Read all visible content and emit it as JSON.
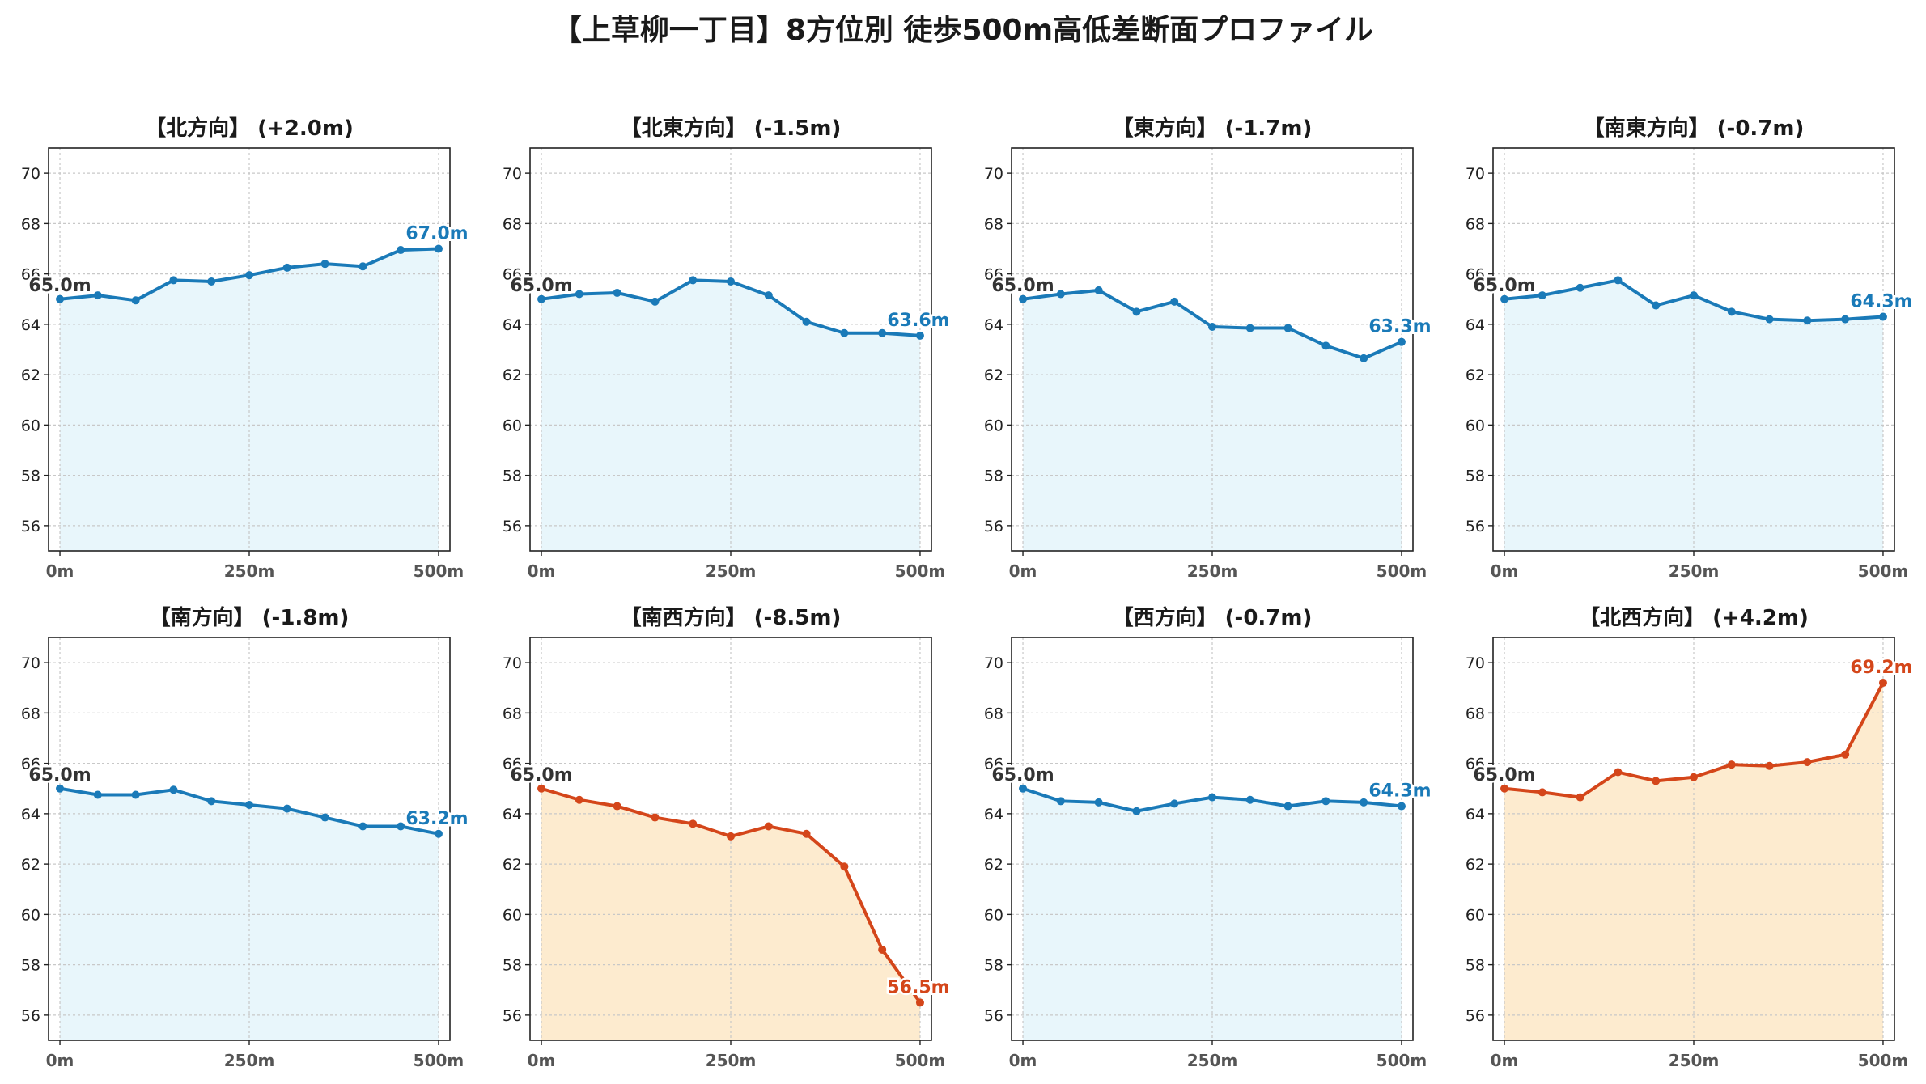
{
  "title": "【上草柳一丁目】8方位別 徒歩500m高低差断面プロファイル",
  "colors": {
    "flat_line": "#1a7ab8",
    "flat_fill": "#e8f6fb",
    "steep_line": "#d4461a",
    "steep_fill": "#fdebcf",
    "start_label": "#333333"
  },
  "chart_data": [
    {
      "type": "area",
      "title": "【北方向】 (+2.0m)",
      "style": "flat",
      "x": [
        0,
        50,
        100,
        150,
        200,
        250,
        300,
        350,
        400,
        450,
        500
      ],
      "y": [
        65.0,
        65.15,
        64.95,
        65.75,
        65.7,
        65.95,
        66.25,
        66.4,
        66.3,
        66.95,
        67.0
      ],
      "start_label": "65.0m",
      "end_label": "67.0m",
      "xticks": [
        "0m",
        "250m",
        "500m"
      ],
      "xtick_values": [
        0,
        250,
        500
      ],
      "yticks": [
        "56",
        "58",
        "60",
        "62",
        "64",
        "66",
        "68",
        "70"
      ],
      "ytick_values": [
        56,
        58,
        60,
        62,
        64,
        66,
        68,
        70
      ],
      "ylim": [
        55,
        71
      ],
      "xlim": [
        -15,
        515
      ],
      "grid": true
    },
    {
      "type": "area",
      "title": "【北東方向】 (-1.5m)",
      "style": "flat",
      "x": [
        0,
        50,
        100,
        150,
        200,
        250,
        300,
        350,
        400,
        450,
        500
      ],
      "y": [
        65.0,
        65.2,
        65.25,
        64.9,
        65.75,
        65.7,
        65.15,
        64.1,
        63.65,
        63.65,
        63.55
      ],
      "start_label": "65.0m",
      "end_label": "63.6m",
      "xticks": [
        "0m",
        "250m",
        "500m"
      ],
      "xtick_values": [
        0,
        250,
        500
      ],
      "yticks": [
        "56",
        "58",
        "60",
        "62",
        "64",
        "66",
        "68",
        "70"
      ],
      "ytick_values": [
        56,
        58,
        60,
        62,
        64,
        66,
        68,
        70
      ],
      "ylim": [
        55,
        71
      ],
      "xlim": [
        -15,
        515
      ],
      "grid": true
    },
    {
      "type": "area",
      "title": "【東方向】 (-1.7m)",
      "style": "flat",
      "x": [
        0,
        50,
        100,
        150,
        200,
        250,
        300,
        350,
        400,
        450,
        500
      ],
      "y": [
        65.0,
        65.2,
        65.35,
        64.5,
        64.9,
        63.9,
        63.85,
        63.85,
        63.15,
        62.65,
        63.3
      ],
      "start_label": "65.0m",
      "end_label": "63.3m",
      "xticks": [
        "0m",
        "250m",
        "500m"
      ],
      "xtick_values": [
        0,
        250,
        500
      ],
      "yticks": [
        "56",
        "58",
        "60",
        "62",
        "64",
        "66",
        "68",
        "70"
      ],
      "ytick_values": [
        56,
        58,
        60,
        62,
        64,
        66,
        68,
        70
      ],
      "ylim": [
        55,
        71
      ],
      "xlim": [
        -15,
        515
      ],
      "grid": true
    },
    {
      "type": "area",
      "title": "【南東方向】 (-0.7m)",
      "style": "flat",
      "x": [
        0,
        50,
        100,
        150,
        200,
        250,
        300,
        350,
        400,
        450,
        500
      ],
      "y": [
        65.0,
        65.15,
        65.45,
        65.75,
        64.75,
        65.15,
        64.5,
        64.2,
        64.15,
        64.2,
        64.3
      ],
      "start_label": "65.0m",
      "end_label": "64.3m",
      "xticks": [
        "0m",
        "250m",
        "500m"
      ],
      "xtick_values": [
        0,
        250,
        500
      ],
      "yticks": [
        "56",
        "58",
        "60",
        "62",
        "64",
        "66",
        "68",
        "70"
      ],
      "ytick_values": [
        56,
        58,
        60,
        62,
        64,
        66,
        68,
        70
      ],
      "ylim": [
        55,
        71
      ],
      "xlim": [
        -15,
        515
      ],
      "grid": true
    },
    {
      "type": "area",
      "title": "【南方向】 (-1.8m)",
      "style": "flat",
      "x": [
        0,
        50,
        100,
        150,
        200,
        250,
        300,
        350,
        400,
        450,
        500
      ],
      "y": [
        65.0,
        64.75,
        64.75,
        64.95,
        64.5,
        64.35,
        64.2,
        63.85,
        63.5,
        63.5,
        63.2
      ],
      "start_label": "65.0m",
      "end_label": "63.2m",
      "xticks": [
        "0m",
        "250m",
        "500m"
      ],
      "xtick_values": [
        0,
        250,
        500
      ],
      "yticks": [
        "56",
        "58",
        "60",
        "62",
        "64",
        "66",
        "68",
        "70"
      ],
      "ytick_values": [
        56,
        58,
        60,
        62,
        64,
        66,
        68,
        70
      ],
      "ylim": [
        55,
        71
      ],
      "xlim": [
        -15,
        515
      ],
      "grid": true
    },
    {
      "type": "area",
      "title": "【南西方向】 (-8.5m)",
      "style": "steep",
      "x": [
        0,
        50,
        100,
        150,
        200,
        250,
        300,
        350,
        400,
        450,
        500
      ],
      "y": [
        65.0,
        64.55,
        64.3,
        63.85,
        63.6,
        63.1,
        63.5,
        63.2,
        61.9,
        58.6,
        56.5
      ],
      "start_label": "65.0m",
      "end_label": "56.5m",
      "xticks": [
        "0m",
        "250m",
        "500m"
      ],
      "xtick_values": [
        0,
        250,
        500
      ],
      "yticks": [
        "56",
        "58",
        "60",
        "62",
        "64",
        "66",
        "68",
        "70"
      ],
      "ytick_values": [
        56,
        58,
        60,
        62,
        64,
        66,
        68,
        70
      ],
      "ylim": [
        55,
        71
      ],
      "xlim": [
        -15,
        515
      ],
      "grid": true
    },
    {
      "type": "area",
      "title": "【西方向】 (-0.7m)",
      "style": "flat",
      "x": [
        0,
        50,
        100,
        150,
        200,
        250,
        300,
        350,
        400,
        450,
        500
      ],
      "y": [
        65.0,
        64.5,
        64.45,
        64.1,
        64.4,
        64.65,
        64.55,
        64.3,
        64.5,
        64.45,
        64.3
      ],
      "start_label": "65.0m",
      "end_label": "64.3m",
      "xticks": [
        "0m",
        "250m",
        "500m"
      ],
      "xtick_values": [
        0,
        250,
        500
      ],
      "yticks": [
        "56",
        "58",
        "60",
        "62",
        "64",
        "66",
        "68",
        "70"
      ],
      "ytick_values": [
        56,
        58,
        60,
        62,
        64,
        66,
        68,
        70
      ],
      "ylim": [
        55,
        71
      ],
      "xlim": [
        -15,
        515
      ],
      "grid": true
    },
    {
      "type": "area",
      "title": "【北西方向】 (+4.2m)",
      "style": "steep",
      "x": [
        0,
        50,
        100,
        150,
        200,
        250,
        300,
        350,
        400,
        450,
        500
      ],
      "y": [
        65.0,
        64.85,
        64.65,
        65.65,
        65.3,
        65.45,
        65.95,
        65.9,
        66.05,
        66.35,
        69.2
      ],
      "start_label": "65.0m",
      "end_label": "69.2m",
      "xticks": [
        "0m",
        "250m",
        "500m"
      ],
      "xtick_values": [
        0,
        250,
        500
      ],
      "yticks": [
        "56",
        "58",
        "60",
        "62",
        "64",
        "66",
        "68",
        "70"
      ],
      "ytick_values": [
        56,
        58,
        60,
        62,
        64,
        66,
        68,
        70
      ],
      "ylim": [
        55,
        71
      ],
      "xlim": [
        -15,
        515
      ],
      "grid": true
    }
  ]
}
